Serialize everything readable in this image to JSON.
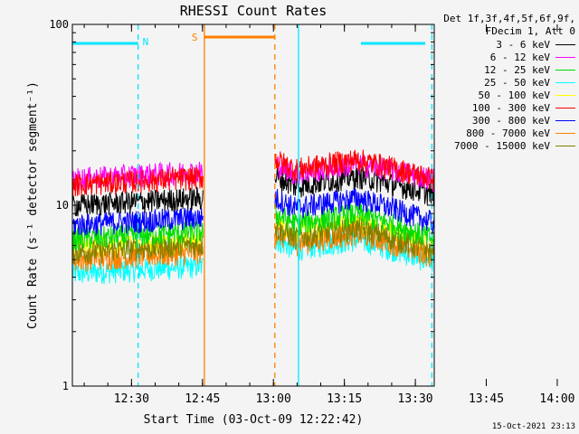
{
  "chart_data": {
    "type": "line",
    "title": "RHESSI Count Rates",
    "xlabel": "Start Time (03-Oct-09 12:22:42)",
    "ylabel": "Count Rate (s⁻¹ detector segment⁻¹)",
    "yscale": "log",
    "ylim": [
      1,
      100
    ],
    "xlim_minutes": [
      -5.2,
      71.3
    ],
    "x_ticks": [
      "12:30",
      "12:45",
      "13:00",
      "13:15",
      "13:30",
      "13:45",
      "14:00"
    ],
    "y_ticks": [
      "1",
      "10",
      "100"
    ],
    "legend_header": [
      "Det 1f,3f,4f,5f,6f,9f,",
      "FDecim 1, Att 0"
    ],
    "series": [
      {
        "name": "3 - 6 keV",
        "color": "#000000",
        "seg1": 10.0,
        "seg2_peak": 14.5,
        "seg2_end": 11.5
      },
      {
        "name": "6 - 12 keV",
        "color": "#ff00ff",
        "seg1": 14.0,
        "seg2_peak": 17.0,
        "seg2_end": 14.0
      },
      {
        "name": "12 - 25 keV",
        "color": "#00dd00",
        "seg1": 6.5,
        "seg2_peak": 9.0,
        "seg2_end": 6.5
      },
      {
        "name": "25 - 50 keV",
        "color": "#00ffff",
        "seg1": 4.2,
        "seg2_peak": 6.5,
        "seg2_end": 4.8
      },
      {
        "name": "50 - 100 keV",
        "color": "#ffff00",
        "seg1": 5.8,
        "seg2_peak": 8.0,
        "seg2_end": 5.8
      },
      {
        "name": "100 - 300 keV",
        "color": "#ff0000",
        "seg1": 13.0,
        "seg2_peak": 18.0,
        "seg2_end": 14.0
      },
      {
        "name": "300 - 800 keV",
        "color": "#0000ff",
        "seg1": 7.8,
        "seg2_peak": 11.0,
        "seg2_end": 8.0
      },
      {
        "name": "800 - 7000 keV",
        "color": "#ff8000",
        "seg1": 5.0,
        "seg2_peak": 7.0,
        "seg2_end": 5.2
      },
      {
        "name": "7000 - 15000 keV",
        "color": "#808000",
        "seg1": 5.5,
        "seg2_peak": 7.5,
        "seg2_end": 5.5
      }
    ],
    "data_segments_minutes": [
      [
        -5.2,
        22.4
      ],
      [
        37.6,
        71.3
      ]
    ],
    "annotations": [
      {
        "label": "N",
        "color": "#00e5ff",
        "start_min": 42.6,
        "end_min": 70.8
      },
      {
        "label": "S",
        "color": "#ff8000",
        "start_min": 22.7,
        "end_min": 37.6
      }
    ],
    "flag_bars": [
      {
        "color": "#00e5ff",
        "from_min": -5.2,
        "to_min": 8.7
      },
      {
        "color": "#00e5ff",
        "from_min": 55.8,
        "to_min": 69.4
      },
      {
        "color": "#ff8000",
        "from_min": 22.7,
        "to_min": 37.6
      }
    ]
  },
  "footer": "15-Oct-2021 23:13",
  "colors": {
    "background": "#f4f4f4",
    "axes": "#000000"
  }
}
